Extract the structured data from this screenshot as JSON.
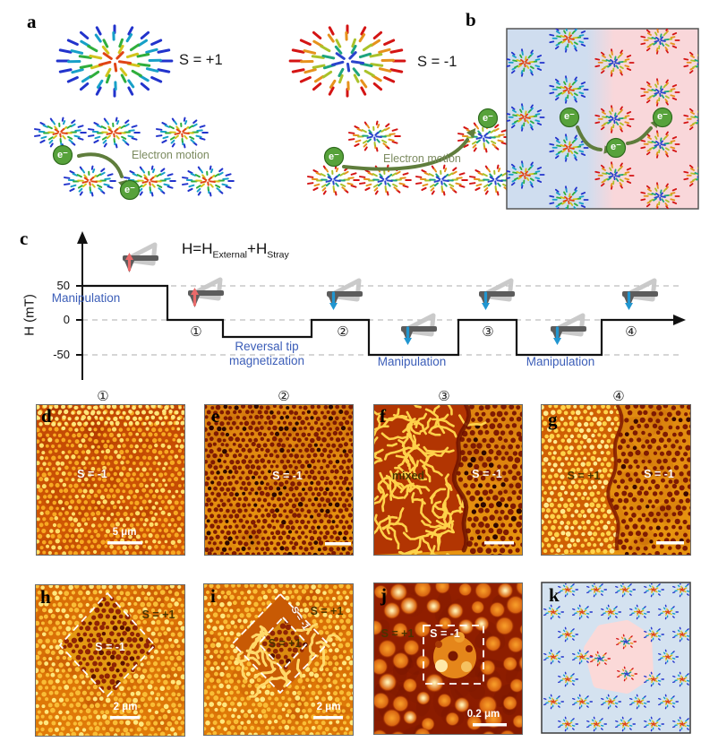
{
  "shared": {
    "electron": "e⁻"
  },
  "colors": {
    "blue_text": "#3c5eb8",
    "electron_green": "#57a23b",
    "electron_rim": "#2f6b1e",
    "arrow_green": "#5f7d3c",
    "motion_text": "#7c8b60",
    "skyrmion_rim_up": "#2233cc",
    "skyrmion_rim_down": "#d41414",
    "b_left_bg": "#cfddef",
    "b_right_bg": "#f9d7da",
    "k_bg": "#d4e2f0",
    "k_patch": "#fbd9d8",
    "tip_red": "#e86a6a",
    "tip_blue": "#2196d0",
    "scan_orange": "#d85c08",
    "scan_bright_dot": "#f7a922",
    "scan_dark_dot": "#7e1a02"
  },
  "panels": {
    "a": {
      "label": "a",
      "left_topology": "S = +1",
      "right_topology": "S = -1",
      "electron_motion": "Electron motion"
    },
    "b": {
      "label": "b"
    },
    "c": {
      "label": "c",
      "formula": {
        "p1": "H=H",
        "s1": "External",
        "p2": "+H",
        "s2": "Stray"
      },
      "y_axis_label": "H (mT)",
      "tick_50": "50",
      "tick_0": "0",
      "tick_neg50": "-50",
      "manipulation_1": "Manipulation",
      "reversal_label": "Reversal tip magnetization",
      "manipulation_2": "Manipulation",
      "manipulation_3": "Manipulation",
      "markers": [
        "①",
        "②",
        "③",
        "④"
      ]
    },
    "d": {
      "label": "d",
      "marker": "①",
      "region": "S = -1",
      "scalebar": "5 μm"
    },
    "e": {
      "label": "e",
      "marker": "②",
      "region": "S = -1"
    },
    "f": {
      "label": "f",
      "marker": "③",
      "region_left": "mixed",
      "region_right": "S = -1"
    },
    "g": {
      "label": "g",
      "marker": "④",
      "region_left": "S = +1",
      "region_right": "S = -1"
    },
    "h": {
      "label": "h",
      "region_outer": "S = +1",
      "region_inner": "S = -1",
      "scalebar": "2 μm"
    },
    "i": {
      "label": "i",
      "region_outer": "S = +1",
      "region_band": "S = -1",
      "region_inner": "S = +1",
      "scalebar": "2 μm"
    },
    "j": {
      "label": "j",
      "region_left": "S = +1",
      "region_inner": "S = -1",
      "scalebar": "0.2 μm"
    },
    "k": {
      "label": "k"
    }
  },
  "chart_data": {
    "type": "line",
    "title": "H = H_External + H_Stray",
    "ylabel": "H (mT)",
    "yticks": [
      50,
      0,
      -50
    ],
    "ylim": [
      -75,
      100
    ],
    "grid": "dashed horizontal lines at +50, 0, -50",
    "legend": "none",
    "series": [
      {
        "name": "H",
        "step_segments": [
          {
            "phase": "Manipulation",
            "H_mT": 50
          },
          {
            "marker": "①",
            "H_mT": 0
          },
          {
            "phase": "Reversal tip magnetization",
            "H_mT": -25
          },
          {
            "marker": "②",
            "H_mT": 0
          },
          {
            "phase": "Manipulation",
            "H_mT": -50
          },
          {
            "marker": "③",
            "H_mT": 0
          },
          {
            "phase": "Manipulation",
            "H_mT": -50
          },
          {
            "marker": "④",
            "H_mT": 0
          }
        ]
      }
    ]
  }
}
